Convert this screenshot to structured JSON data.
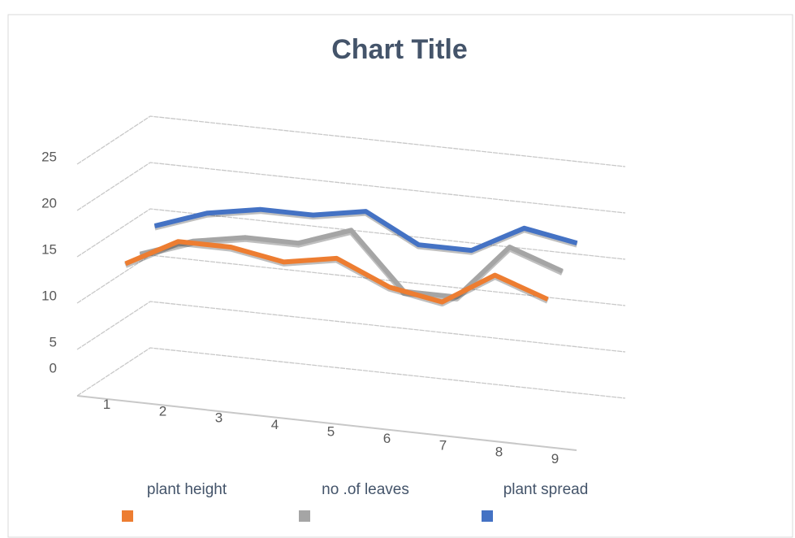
{
  "chart_data": {
    "type": "line3d",
    "title": "Chart Title",
    "categories": [
      1,
      2,
      3,
      4,
      5,
      6,
      7,
      8,
      9
    ],
    "series": [
      {
        "name": "plant height",
        "color": "#ed7d31",
        "values": [
          13,
          16,
          16,
          15,
          16,
          13.5,
          12.5,
          16,
          14
        ]
      },
      {
        "name": "no .of leaves",
        "color": "#a5a5a5",
        "values": [
          13,
          15,
          16,
          16,
          18,
          12,
          12,
          18,
          16
        ]
      },
      {
        "name": "plant spread",
        "color": "#4472c4",
        "values": [
          15,
          17,
          18,
          18,
          19,
          16,
          16,
          19,
          18
        ]
      }
    ],
    "ylim": [
      0,
      25
    ],
    "yticks": [
      0,
      5,
      10,
      15,
      20,
      25
    ],
    "grid": true
  }
}
